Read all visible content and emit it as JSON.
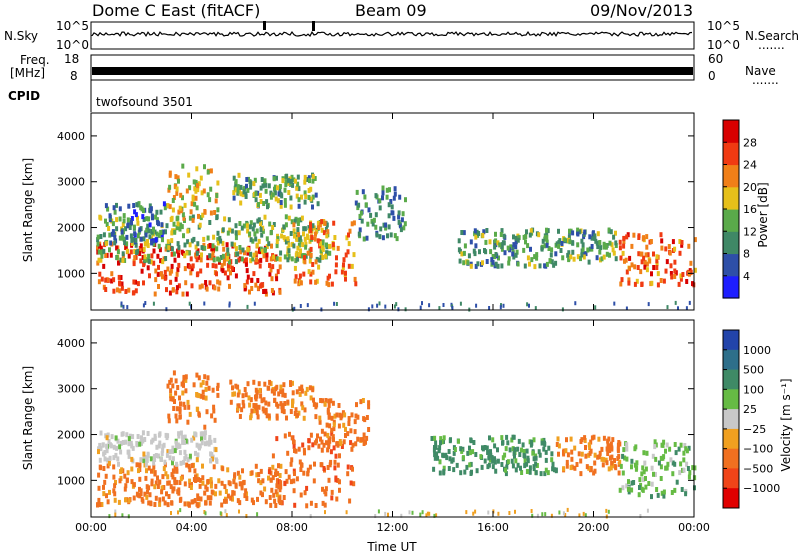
{
  "header": {
    "station": "Dome C East (fitACF)",
    "beam": "Beam 09",
    "date": "09/Nov/2013"
  },
  "top_panels": {
    "nsky_label": "N.Sky",
    "nsky_ticks": [
      "10^5",
      "10^0"
    ],
    "nsearch_label": "N.Search",
    "nsearch_ticks": [
      "10^5",
      "10^0"
    ],
    "freq_label": "Freq.",
    "freq_unit": "[MHz]",
    "freq_ticks": [
      "18",
      "8"
    ],
    "nave_label": "Nave",
    "nave_ticks": [
      "60",
      "0"
    ],
    "cpid_label": "CPID",
    "cpid_value": "twofsound 3501",
    "dots": "......."
  },
  "power_colorbar": {
    "title": "Power [dB]",
    "labels": [
      "4",
      "8",
      "12",
      "16",
      "20",
      "24",
      "28"
    ],
    "colors": [
      "#1e1eff",
      "#2e4fa8",
      "#3f8866",
      "#5aaa4a",
      "#e6c01a",
      "#f07f18",
      "#f03a12",
      "#d80000"
    ]
  },
  "velocity_colorbar": {
    "title": "Velocity [m s⁻¹]",
    "labels": [
      "1000",
      "500",
      "100",
      "25",
      "−25",
      "−100",
      "−500",
      "−1000"
    ],
    "colors": [
      "#2244aa",
      "#2e6f8a",
      "#3f8a66",
      "#66bb44",
      "#c8c8c8",
      "#f0a020",
      "#f07020",
      "#f04418",
      "#e00000"
    ]
  },
  "chart_data": [
    {
      "type": "heatmap",
      "name": "power",
      "xlabel": "",
      "ylabel": "Slant Range [km]",
      "x_ticks": [
        "00:00",
        "04:00",
        "08:00",
        "12:00",
        "16:00",
        "20:00",
        "00:00"
      ],
      "y_ticks": [
        1000,
        2000,
        3000,
        4000
      ],
      "xlim": [
        0,
        24
      ],
      "ylim": [
        200,
        4500
      ],
      "units": "dB",
      "regions": [
        {
          "t0": 0.2,
          "t1": 7.5,
          "r0": 600,
          "r1": 1700,
          "power": 26
        },
        {
          "t0": 0.2,
          "t1": 9.5,
          "r0": 1300,
          "r1": 2300,
          "power": 14
        },
        {
          "t0": 0.5,
          "t1": 3.0,
          "r0": 1700,
          "r1": 2600,
          "power": 9
        },
        {
          "t0": 3.0,
          "t1": 5.0,
          "r0": 2200,
          "r1": 3400,
          "power": 18
        },
        {
          "t0": 5.5,
          "t1": 9.0,
          "r0": 2500,
          "r1": 3200,
          "power": 13
        },
        {
          "t0": 8.0,
          "t1": 10.5,
          "r0": 800,
          "r1": 2200,
          "power": 22
        },
        {
          "t0": 10.5,
          "t1": 12.5,
          "r0": 1800,
          "r1": 3000,
          "power": 10
        },
        {
          "t0": 14.5,
          "t1": 18.5,
          "r0": 1200,
          "r1": 2000,
          "power": 11
        },
        {
          "t0": 18.5,
          "t1": 21.0,
          "r0": 1300,
          "r1": 2000,
          "power": 12
        },
        {
          "t0": 21.0,
          "t1": 24.0,
          "r0": 800,
          "r1": 1900,
          "power": 24
        }
      ]
    },
    {
      "type": "heatmap",
      "name": "velocity",
      "xlabel": "Time UT",
      "ylabel": "Slant Range [km]",
      "x_ticks": [
        "00:00",
        "04:00",
        "08:00",
        "12:00",
        "16:00",
        "20:00",
        "00:00"
      ],
      "y_ticks": [
        1000,
        2000,
        3000,
        4000
      ],
      "xlim": [
        0,
        24
      ],
      "ylim": [
        200,
        4500
      ],
      "units": "m/s",
      "regions": [
        {
          "t0": 0.2,
          "t1": 7.5,
          "r0": 500,
          "r1": 1400,
          "velocity": -150
        },
        {
          "t0": 0.2,
          "t1": 5.0,
          "r0": 1400,
          "r1": 2100,
          "velocity": 0
        },
        {
          "t0": 3.0,
          "t1": 5.0,
          "r0": 2200,
          "r1": 3400,
          "velocity": -150
        },
        {
          "t0": 5.5,
          "t1": 9.0,
          "r0": 2400,
          "r1": 3200,
          "velocity": -150
        },
        {
          "t0": 7.0,
          "t1": 10.5,
          "r0": 500,
          "r1": 2100,
          "velocity": -400
        },
        {
          "t0": 9.0,
          "t1": 11.0,
          "r0": 1800,
          "r1": 2800,
          "velocity": -150
        },
        {
          "t0": 13.5,
          "t1": 18.5,
          "r0": 1200,
          "r1": 2000,
          "velocity": 150
        },
        {
          "t0": 18.5,
          "t1": 21.0,
          "r0": 1200,
          "r1": 2000,
          "velocity": -150
        },
        {
          "t0": 21.0,
          "t1": 24.0,
          "r0": 700,
          "r1": 1900,
          "velocity": 60
        }
      ]
    }
  ]
}
